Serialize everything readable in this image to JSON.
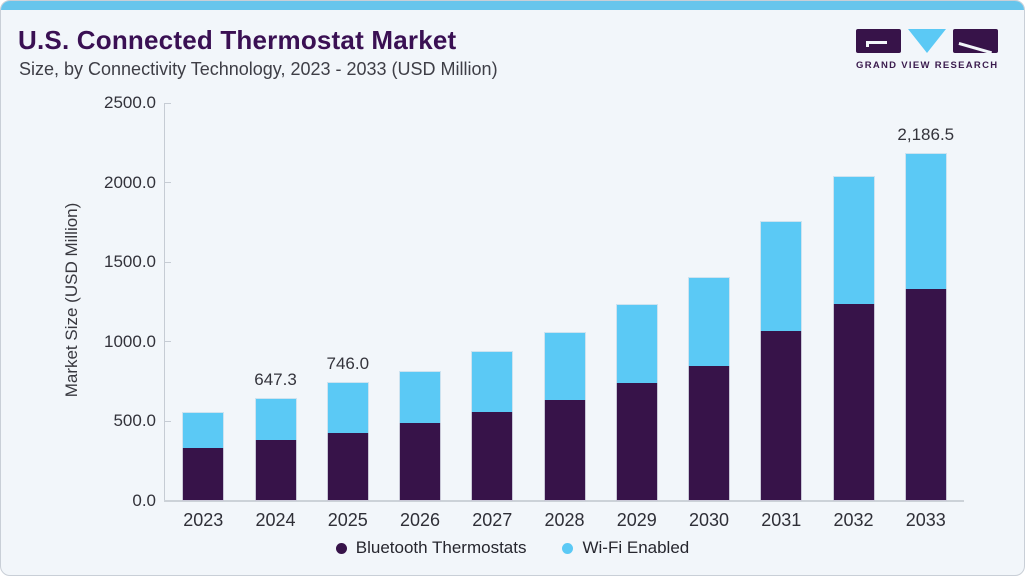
{
  "header": {
    "title": "U.S. Connected Thermostat Market",
    "subtitle": "Size, by Connectivity Technology, 2023 - 2033 (USD Million)"
  },
  "logo": {
    "text": "GRAND VIEW RESEARCH",
    "mark_colors": {
      "g": "#371349",
      "v": "#5bc9f5",
      "r": "#371349"
    }
  },
  "colors": {
    "card_background": "#f2f6fa",
    "top_accent": "#67c5ec",
    "bluetooth": "#371349",
    "wifi": "#5bc9f5",
    "title": "#3a1053",
    "axis_line": "#c6ccd4"
  },
  "chart_data": {
    "type": "bar",
    "stacked": true,
    "title": "U.S. Connected Thermostat Market",
    "subtitle": "Size, by Connectivity Technology, 2023 - 2033 (USD Million)",
    "xlabel": "",
    "ylabel": "Market Size (USD Million)",
    "ylim": [
      0,
      2500
    ],
    "ytick_step": 500,
    "ytick_labels": [
      "0.0",
      "500.0",
      "1000.0",
      "1500.0",
      "2000.0",
      "2500.0"
    ],
    "grid": false,
    "legend_position": "bottom",
    "categories": [
      "2023",
      "2024",
      "2025",
      "2026",
      "2027",
      "2028",
      "2029",
      "2030",
      "2031",
      "2032",
      "2033"
    ],
    "series": [
      {
        "name": "Bluetooth Thermostats",
        "color": "#371349",
        "values": [
          335,
          385,
          430,
          490,
          560,
          635,
          740,
          850,
          1065,
          1240,
          1330
        ]
      },
      {
        "name": "Wi-Fi Enabled",
        "color": "#5bc9f5",
        "values": [
          226,
          262.3,
          316,
          325,
          380,
          425,
          495,
          555,
          695,
          800,
          856.5
        ]
      }
    ],
    "totals": [
      561,
      647.3,
      746.0,
      815,
      940,
      1060,
      1235,
      1405,
      1760,
      2040,
      2186.5
    ],
    "annotations": [
      {
        "category": "2024",
        "text": "647.3"
      },
      {
        "category": "2025",
        "text": "746.0"
      },
      {
        "category": "2033",
        "text": "2,186.5"
      }
    ]
  }
}
